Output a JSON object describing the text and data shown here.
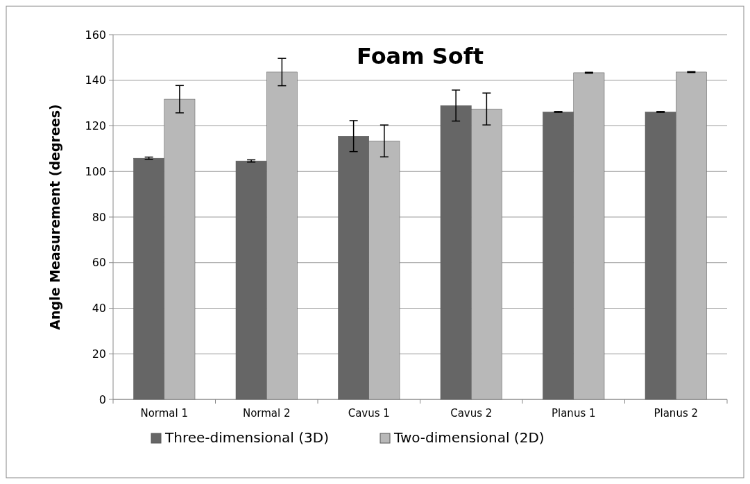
{
  "chart_data": {
    "type": "bar",
    "title": "Foam Soft",
    "ylabel": "Angle Measurement (degrees)",
    "categories": [
      "Normal 1",
      "Normal 2",
      "Cavus 1",
      "Cavus 2",
      "Planus 1",
      "Planus 2"
    ],
    "series": [
      {
        "name": "Three-dimensional (3D)",
        "color": "#666666",
        "values": [
          105.8,
          104.6,
          115.5,
          128.9,
          126.1,
          126.1
        ],
        "errors": [
          0.5,
          0.5,
          6.8,
          6.8,
          0.2,
          0.2
        ]
      },
      {
        "name": "Two-dimensional (2D)",
        "color": "#b8b8b8",
        "values": [
          131.7,
          143.6,
          113.4,
          127.4,
          143.3,
          143.6
        ],
        "errors": [
          6,
          6,
          7,
          7,
          0.2,
          0.2
        ]
      }
    ],
    "ylim": [
      0,
      160
    ],
    "yticks": [
      0,
      20,
      40,
      60,
      80,
      100,
      120,
      140,
      160
    ],
    "grid": "y",
    "legend": "bottom"
  }
}
